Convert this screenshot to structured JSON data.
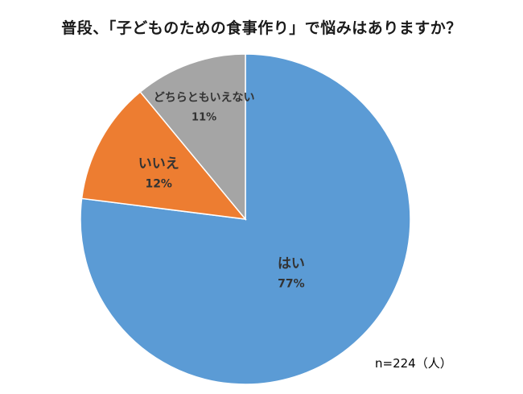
{
  "chart_data": {
    "type": "pie",
    "title": "普段、「子どものための食事作り」で悩みはありますか？",
    "start_angle_deg": 0,
    "direction": "clockwise",
    "slices": [
      {
        "label": "はい",
        "value": 77,
        "display": "77%",
        "color": "#5b9bd5"
      },
      {
        "label": "いいえ",
        "value": 12,
        "display": "12%",
        "color": "#ed7d31"
      },
      {
        "label": "どちらともいえない",
        "value": 11,
        "display": "11%",
        "color": "#a5a5a5"
      }
    ],
    "legend": "none",
    "note": "n=224（人）"
  }
}
